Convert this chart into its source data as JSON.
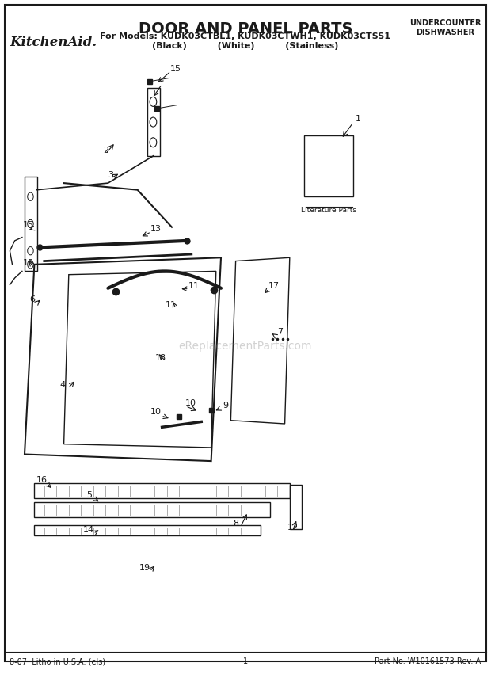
{
  "title": "DOOR AND PANEL PARTS",
  "subtitle": "For Models: KUDK03CTBL1, KUDK03CTWH1, KUDK03CTSS1",
  "subtitle2": "(Black)          (White)          (Stainless)",
  "brand": "KitchenAid.",
  "top_right": "UNDERCOUNTER\nDISHWASHER",
  "footer_left": "8-07  Litho in U.S.A. (els)",
  "footer_center": "1",
  "footer_right": "Part No. W10161573 Rev. A",
  "watermark": "eReplacementParts.com",
  "bg_color": "#ffffff",
  "line_color": "#1a1a1a"
}
